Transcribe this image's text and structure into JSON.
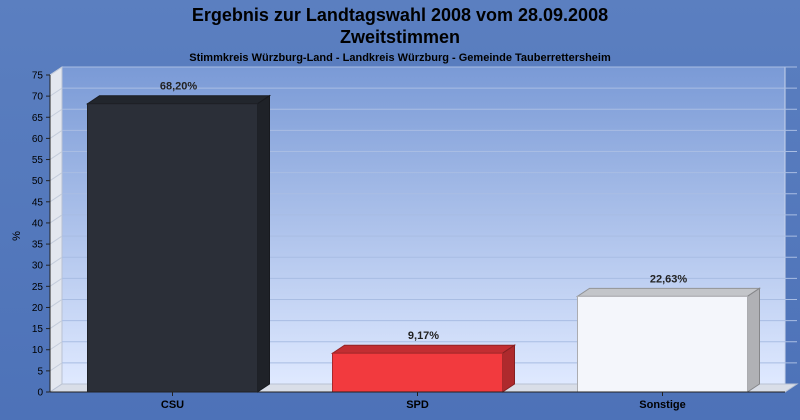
{
  "chart_data": {
    "type": "bar",
    "title": "Ergebnis zur Landtagswahl 2008 vom 28.09.2008",
    "subtitle": "Zweitstimmen",
    "subsubtitle": "Stimmkreis Würzburg-Land - Landkreis Würzburg - Gemeinde Tauberrettersheim",
    "ylabel": "%",
    "xlabel": "",
    "categories": [
      "CSU",
      "SPD",
      "Sonstige"
    ],
    "values": [
      68.2,
      9.17,
      22.63
    ],
    "value_labels": [
      "68,20%",
      "9,17%",
      "22,63%"
    ],
    "colors": [
      "#2b2f38",
      "#f23a3e",
      "#f4f6fb"
    ],
    "ylim": [
      0,
      75
    ],
    "yticks": [
      "0",
      "5",
      "10",
      "15",
      "20",
      "25",
      "30",
      "35",
      "40",
      "45",
      "50",
      "55",
      "60",
      "65",
      "70",
      "75"
    ],
    "grid": true,
    "legend": "none"
  }
}
